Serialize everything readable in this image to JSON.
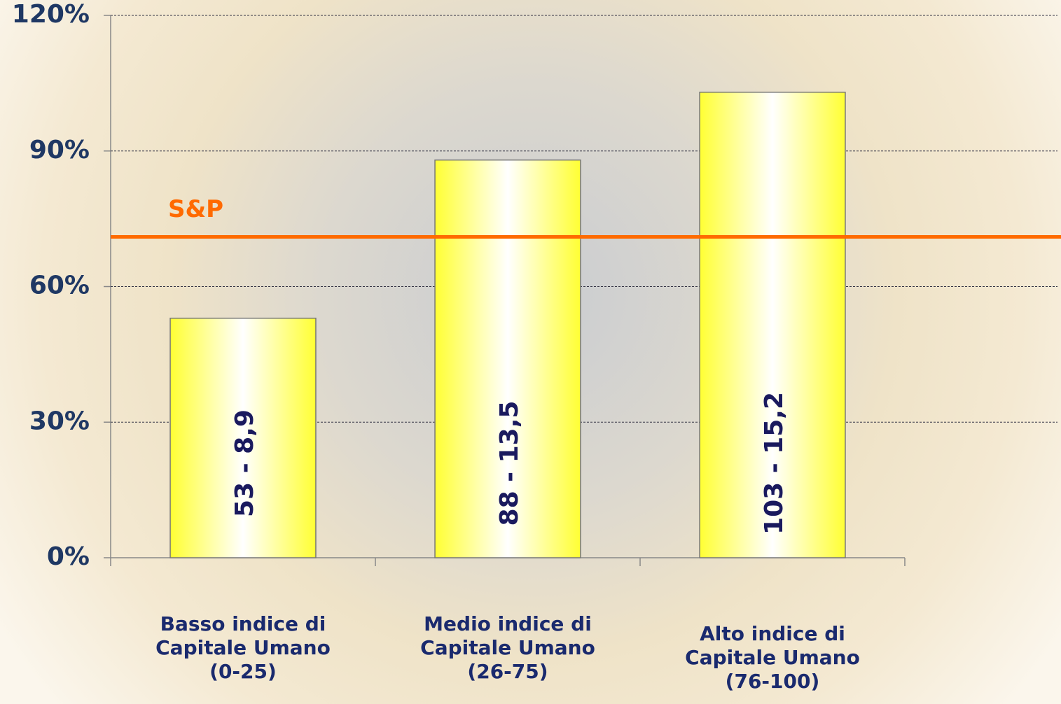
{
  "chart_data": {
    "type": "bar",
    "categories": [
      "Basso indice di\nCapitale Umano\n(0-25)",
      "Medio indice di\nCapitale Umano\n(26-75)",
      "Alto indice di\nCapitale Umano\n(76-100)"
    ],
    "values": [
      53,
      88,
      103
    ],
    "value_labels": [
      "53 - 8,9",
      "88 - 13,5",
      "103 - 15,2"
    ],
    "color": "#ffff33",
    "ylim": [
      0,
      120
    ],
    "yticks": [
      {
        "value": 0,
        "label": "0%"
      },
      {
        "value": 30,
        "label": "30%"
      },
      {
        "value": 60,
        "label": "60%"
      },
      {
        "value": 90,
        "label": "90%"
      },
      {
        "value": 120,
        "label": "120%"
      }
    ],
    "grid": true,
    "reference_line": {
      "label": "S&P",
      "value": 71,
      "color": "#ff6a00"
    }
  }
}
